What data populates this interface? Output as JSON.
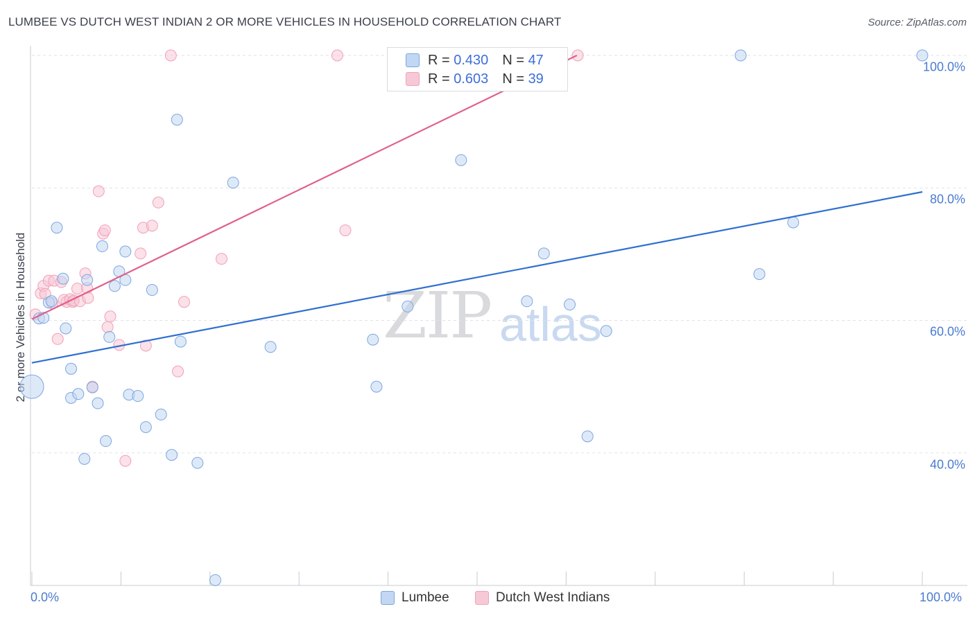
{
  "title": "LUMBEE VS DUTCH WEST INDIAN 2 OR MORE VEHICLES IN HOUSEHOLD CORRELATION CHART",
  "source": "Source: ZipAtlas.com",
  "watermark": {
    "zip": "ZIP",
    "atlas": "atlas"
  },
  "colors": {
    "blue": "#7ba6e0",
    "blue_fill": "#c2d7f3",
    "pink": "#f0a0b8",
    "pink_fill": "#f7c9d6",
    "blue_line": "#2f6fd0",
    "pink_line": "#e0608a"
  },
  "legend": {
    "rows": [
      {
        "r_label": "R = ",
        "r_value": "0.430",
        "n_label": "N = ",
        "n_value": "47"
      },
      {
        "r_label": "R = ",
        "r_value": "0.603",
        "n_label": "N = ",
        "n_value": "39"
      }
    ]
  },
  "bottom_legend": [
    "Lumbee",
    "Dutch West Indians"
  ],
  "chart_data": {
    "type": "scatter",
    "title": "LUMBEE VS DUTCH WEST INDIAN 2 OR MORE VEHICLES IN HOUSEHOLD CORRELATION CHART",
    "xlabel": "",
    "ylabel": "2 or more Vehicles in Household",
    "x_ticks": [
      "0.0%",
      "100.0%"
    ],
    "y_ticks": [
      "100.0%",
      "80.0%",
      "60.0%",
      "40.0%"
    ],
    "xlim": [
      0,
      100
    ],
    "ylim": [
      20,
      100
    ],
    "series": [
      {
        "name": "Lumbee",
        "r": 0.43,
        "n": 47,
        "trend": {
          "x0": 0,
          "y0": 53.6,
          "x1": 100,
          "y1": 79.4
        },
        "points": [
          [
            0,
            50
          ],
          [
            0.8,
            60.3
          ],
          [
            1.3,
            60.4
          ],
          [
            1.9,
            62.7
          ],
          [
            2.2,
            62.9
          ],
          [
            2.8,
            74
          ],
          [
            3.5,
            66.3
          ],
          [
            3.8,
            58.8
          ],
          [
            4.4,
            52.7
          ],
          [
            4.4,
            48.3
          ],
          [
            5.2,
            48.9
          ],
          [
            5.9,
            39.1
          ],
          [
            6.2,
            66.1
          ],
          [
            6.8,
            49.9
          ],
          [
            7.4,
            47.5
          ],
          [
            7.9,
            71.2
          ],
          [
            8.3,
            41.8
          ],
          [
            8.7,
            57.5
          ],
          [
            9.3,
            65.2
          ],
          [
            9.8,
            67.4
          ],
          [
            10.5,
            66.1
          ],
          [
            10.5,
            70.4
          ],
          [
            10.9,
            48.8
          ],
          [
            11.9,
            48.6
          ],
          [
            12.8,
            43.9
          ],
          [
            13.5,
            64.6
          ],
          [
            14.5,
            45.8
          ],
          [
            15.7,
            39.7
          ],
          [
            16.3,
            90.3
          ],
          [
            16.7,
            56.8
          ],
          [
            18.6,
            38.5
          ],
          [
            20.6,
            20.8
          ],
          [
            22.6,
            80.8
          ],
          [
            26.8,
            56
          ],
          [
            38.3,
            57.1
          ],
          [
            38.7,
            50
          ],
          [
            42.2,
            62.1
          ],
          [
            48.2,
            84.2
          ],
          [
            55.6,
            62.9
          ],
          [
            57.5,
            70.1
          ],
          [
            60.4,
            62.4
          ],
          [
            62.4,
            42.5
          ],
          [
            64.5,
            58.4
          ],
          [
            79.6,
            100
          ],
          [
            81.7,
            67
          ],
          [
            85.5,
            74.8
          ],
          [
            100,
            100
          ]
        ]
      },
      {
        "name": "Dutch West Indians",
        "r": 0.603,
        "n": 39,
        "trend": {
          "x0": 0,
          "y0": 60.2,
          "x1": 61.2,
          "y1": 100
        },
        "points": [
          [
            0.4,
            60.9
          ],
          [
            1,
            64.1
          ],
          [
            1.3,
            65.2
          ],
          [
            1.5,
            64
          ],
          [
            1.9,
            66
          ],
          [
            2.3,
            62.6
          ],
          [
            2.5,
            66
          ],
          [
            2.9,
            57.2
          ],
          [
            3.3,
            65.8
          ],
          [
            3.6,
            63.1
          ],
          [
            3.9,
            62.8
          ],
          [
            4.3,
            63.2
          ],
          [
            4.6,
            62.8
          ],
          [
            4.7,
            63
          ],
          [
            5.1,
            64.8
          ],
          [
            5.4,
            62.9
          ],
          [
            6,
            67.1
          ],
          [
            6.2,
            64.9
          ],
          [
            6.3,
            63.4
          ],
          [
            6.8,
            50
          ],
          [
            7.5,
            79.5
          ],
          [
            8,
            73.1
          ],
          [
            8.2,
            73.6
          ],
          [
            8.5,
            59
          ],
          [
            8.8,
            60.6
          ],
          [
            9.8,
            56.3
          ],
          [
            10.5,
            38.8
          ],
          [
            12.2,
            70.1
          ],
          [
            12.8,
            56.2
          ],
          [
            12.5,
            74
          ],
          [
            13.5,
            74.3
          ],
          [
            14.2,
            77.8
          ],
          [
            15.6,
            100
          ],
          [
            16.4,
            52.3
          ],
          [
            17.1,
            62.8
          ],
          [
            21.3,
            69.3
          ],
          [
            34.3,
            100
          ],
          [
            35.2,
            73.6
          ],
          [
            61.3,
            100
          ]
        ]
      }
    ]
  }
}
